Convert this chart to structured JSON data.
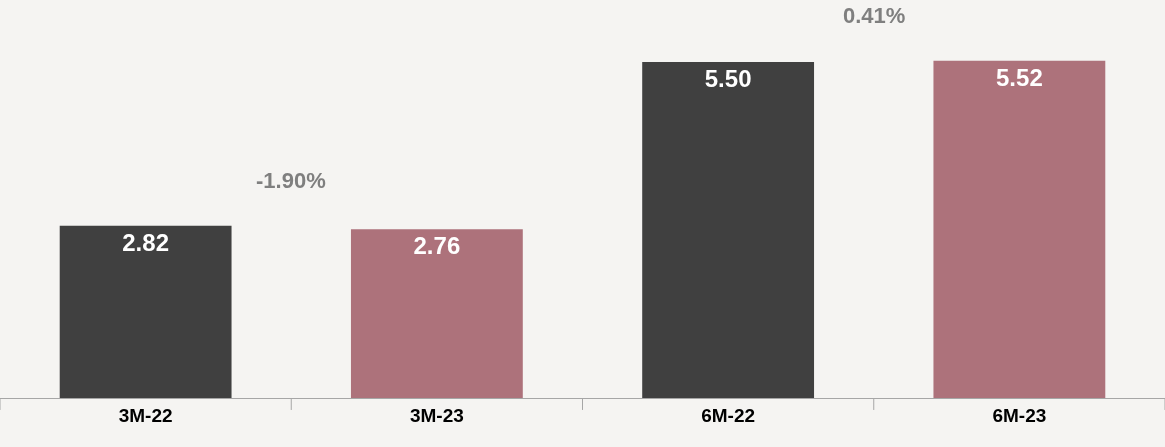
{
  "chart_data": {
    "type": "bar",
    "categories": [
      "3M-22",
      "3M-23",
      "6M-22",
      "6M-23"
    ],
    "values": [
      2.82,
      2.76,
      5.5,
      5.52
    ],
    "colors": [
      "#404040",
      "#ad727b",
      "#404040",
      "#ad727b"
    ],
    "value_labels": [
      "2.82",
      "2.76",
      "5.50",
      "5.52"
    ],
    "annotations": [
      "-1.90%",
      "0.41%"
    ],
    "tick_labels": "x",
    "grid": false,
    "legend": false
  }
}
